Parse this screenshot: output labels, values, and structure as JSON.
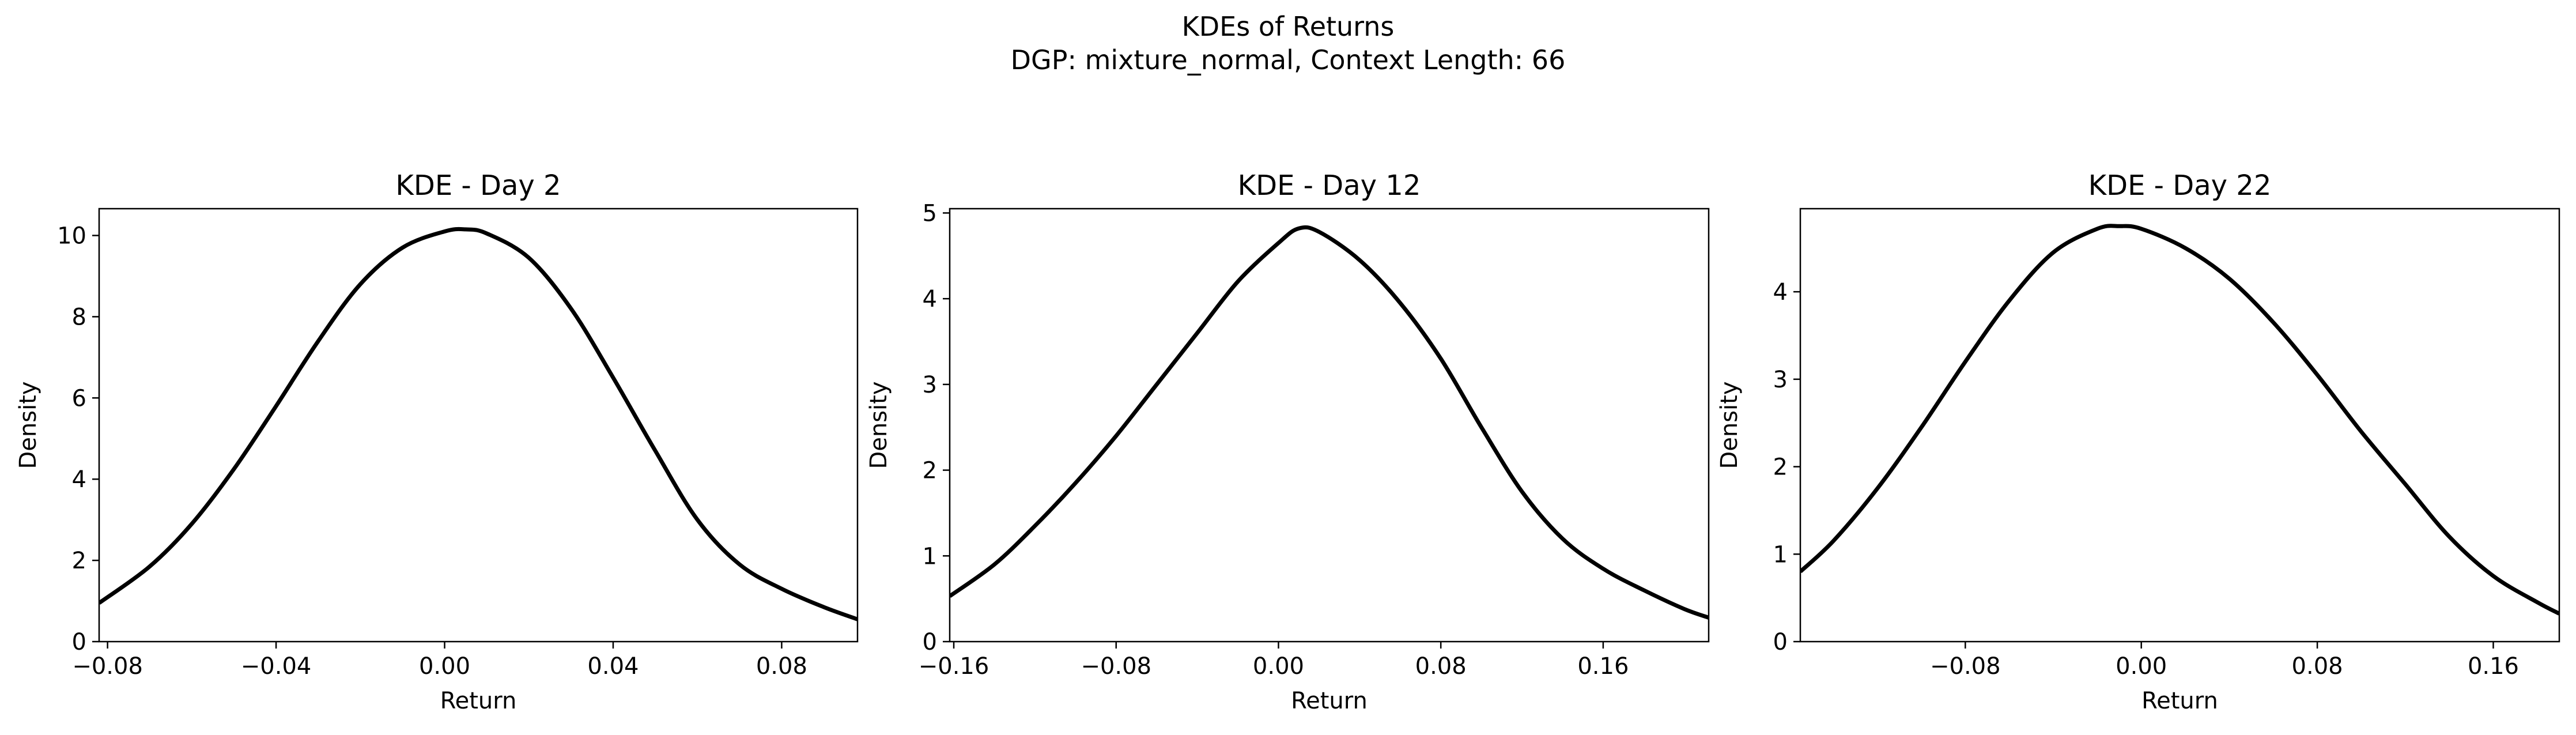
{
  "figure": {
    "title_line1": "KDEs of Returns",
    "title_line2": "DGP: mixture_normal, Context Length: 66",
    "line_color": "#000000",
    "background": "#ffffff"
  },
  "chart_data": [
    {
      "type": "line",
      "title": "KDE - Day 2",
      "xlabel": "Return",
      "ylabel": "Density",
      "xlim": [
        -0.082,
        0.098
      ],
      "ylim": [
        0,
        10.66
      ],
      "xticks": [
        -0.08,
        -0.04,
        0.0,
        0.04,
        0.08
      ],
      "xtick_labels": [
        "−0.08",
        "−0.04",
        "0.00",
        "0.04",
        "0.08"
      ],
      "yticks": [
        0,
        2,
        4,
        6,
        8,
        10
      ],
      "ytick_labels": [
        "0",
        "2",
        "4",
        "6",
        "8",
        "10"
      ],
      "grid": false,
      "legend": "none",
      "series": [
        {
          "x": [
            -0.082,
            -0.07,
            -0.06,
            -0.05,
            -0.04,
            -0.03,
            -0.02,
            -0.01,
            0.0,
            0.005,
            0.01,
            0.02,
            0.03,
            0.04,
            0.05,
            0.06,
            0.07,
            0.08,
            0.09,
            0.098
          ],
          "y": [
            0.95,
            1.85,
            2.9,
            4.25,
            5.8,
            7.4,
            8.8,
            9.7,
            10.1,
            10.15,
            10.05,
            9.45,
            8.2,
            6.5,
            4.7,
            3.0,
            1.9,
            1.3,
            0.85,
            0.55
          ]
        }
      ]
    },
    {
      "type": "line",
      "title": "KDE - Day 12",
      "xlabel": "Return",
      "ylabel": "Density",
      "xlim": [
        -0.162,
        0.212
      ],
      "ylim": [
        0,
        5.05
      ],
      "xticks": [
        -0.16,
        -0.08,
        0.0,
        0.08,
        0.16
      ],
      "xtick_labels": [
        "−0.16",
        "−0.08",
        "0.00",
        "0.08",
        "0.16"
      ],
      "yticks": [
        0,
        1,
        2,
        3,
        4,
        5
      ],
      "ytick_labels": [
        "0",
        "1",
        "2",
        "3",
        "4",
        "5"
      ],
      "grid": false,
      "legend": "none",
      "series": [
        {
          "x": [
            -0.162,
            -0.14,
            -0.12,
            -0.1,
            -0.08,
            -0.06,
            -0.04,
            -0.02,
            0.0,
            0.01,
            0.02,
            0.04,
            0.06,
            0.08,
            0.1,
            0.12,
            0.14,
            0.16,
            0.18,
            0.2,
            0.212
          ],
          "y": [
            0.53,
            0.9,
            1.35,
            1.85,
            2.4,
            3.0,
            3.6,
            4.2,
            4.65,
            4.82,
            4.78,
            4.45,
            3.95,
            3.3,
            2.5,
            1.75,
            1.2,
            0.85,
            0.6,
            0.38,
            0.28
          ]
        }
      ]
    },
    {
      "type": "line",
      "title": "KDE - Day 22",
      "xlabel": "Return",
      "ylabel": "Density",
      "xlim": [
        -0.155,
        0.19
      ],
      "ylim": [
        0,
        4.95
      ],
      "xticks": [
        -0.08,
        0.0,
        0.08,
        0.16
      ],
      "xtick_labels": [
        "−0.08",
        "0.00",
        "0.08",
        "0.16"
      ],
      "yticks": [
        0,
        1,
        2,
        3,
        4
      ],
      "ytick_labels": [
        "0",
        "1",
        "2",
        "3",
        "4"
      ],
      "grid": false,
      "legend": "none",
      "series": [
        {
          "x": [
            -0.155,
            -0.14,
            -0.12,
            -0.1,
            -0.08,
            -0.06,
            -0.04,
            -0.02,
            -0.01,
            0.0,
            0.02,
            0.04,
            0.06,
            0.08,
            0.1,
            0.12,
            0.14,
            0.16,
            0.18,
            0.19
          ],
          "y": [
            0.8,
            1.15,
            1.75,
            2.45,
            3.2,
            3.9,
            4.45,
            4.72,
            4.75,
            4.72,
            4.5,
            4.15,
            3.65,
            3.05,
            2.4,
            1.8,
            1.2,
            0.75,
            0.45,
            0.32
          ]
        }
      ]
    }
  ]
}
